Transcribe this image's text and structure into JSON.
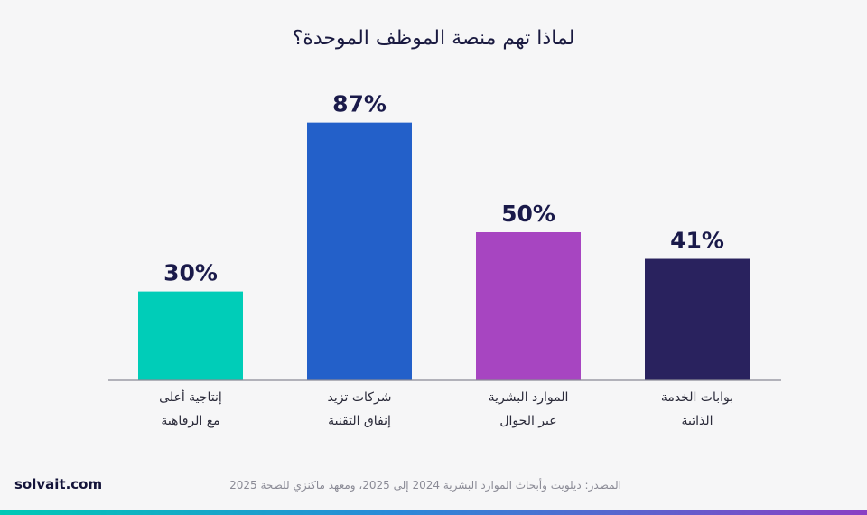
{
  "chart_data": {
    "type": "bar",
    "title": "لماذا تهم منصة الموظف الموحدة؟",
    "categories": [
      [
        "إنتاجية أعلى",
        "مع الرفاهية"
      ],
      [
        "شركات تزيد",
        "إنفاق التقنية"
      ],
      [
        "الموارد البشرية",
        "عبر الجوال"
      ],
      [
        "بوابات الخدمة",
        "الذاتية"
      ]
    ],
    "values": [
      30,
      87,
      50,
      41
    ],
    "value_labels": [
      "30%",
      "87%",
      "50%",
      "41%"
    ],
    "colors": [
      "#00cdb8",
      "#2360c9",
      "#a745c1",
      "#29225e"
    ],
    "ylim": [
      0,
      100
    ],
    "grid": false,
    "legend": "none"
  },
  "brand": "solvait.com",
  "source": "المصدر: ديلويت وأبحاث الموارد البشرية 2024 إلى 2025، ومعهد ماكنزي للصحة 2025"
}
